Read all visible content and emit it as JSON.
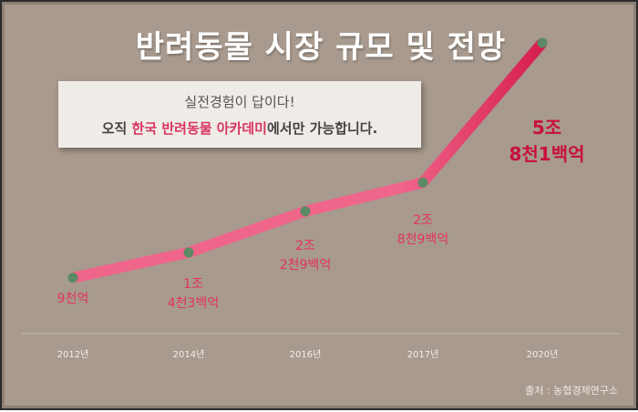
{
  "title": "반려동물 시장 규모 및 전망",
  "callout": {
    "line1": "실전경험이 답이다!",
    "line2_pre": "오직 ",
    "line2_highlight": "한국 반려동물 아카데미",
    "line2_post": "에서만 가능합니다."
  },
  "source": "출처 : 농협경제연구소",
  "colors": {
    "background": "#a89a8e",
    "line": "#f0658a",
    "line_end": "#d61d4e",
    "point": "#5b8a64",
    "label": "#e2335f",
    "label_big": "#c8103f"
  },
  "chart_data": {
    "type": "line",
    "title": "반려동물 시장 규모 및 전망",
    "categories": [
      "2012년",
      "2014년",
      "2016년",
      "2017년",
      "2020년"
    ],
    "values_won": [
      900000000000,
      1430000000000,
      2290000000000,
      2890000000000,
      5810000000000
    ],
    "data_labels": [
      [
        "9천억"
      ],
      [
        "1조",
        "4천3백억"
      ],
      [
        "2조",
        "2천9백억"
      ],
      [
        "2조",
        "8천9백억"
      ],
      [
        "5조",
        "8천1백억"
      ]
    ],
    "grid": false,
    "legend": "none"
  }
}
